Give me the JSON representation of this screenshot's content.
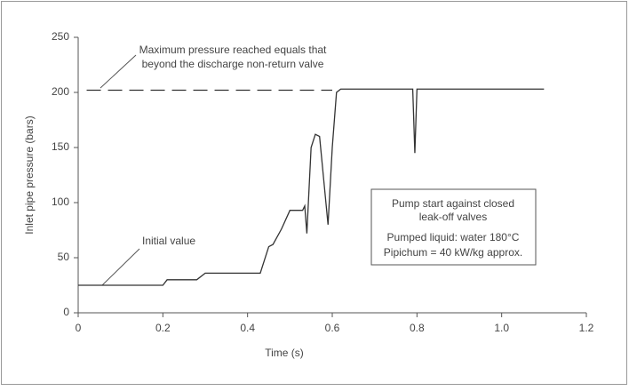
{
  "chart_data": {
    "type": "line",
    "xlabel": "Time (s)",
    "ylabel": "Inlet pipe pressure (bars)",
    "xlim": [
      0,
      1.2
    ],
    "ylim": [
      0,
      250
    ],
    "xticks": [
      0,
      0.2,
      0.4,
      0.6,
      0.8,
      {
        "value": 1,
        "label": "1.0"
      },
      1.2
    ],
    "yticks": [
      0,
      50,
      100,
      150,
      200,
      250
    ],
    "series": [
      {
        "color": "#333333",
        "style": "solid",
        "x": [
          0,
          0.2,
          0.21,
          0.28,
          0.3,
          0.43,
          0.44,
          0.45,
          0.46,
          0.48,
          0.5,
          0.53,
          0.535,
          0.54,
          0.55,
          0.56,
          0.57,
          0.585,
          0.59,
          0.6,
          0.61,
          0.62,
          0.65,
          0.79,
          0.795,
          0.8,
          1.1
        ],
        "values": [
          25,
          25,
          30,
          30,
          36,
          36,
          48,
          60,
          62,
          76,
          93,
          93,
          97,
          72,
          150,
          162,
          160,
          100,
          80,
          150,
          200,
          203,
          203,
          203,
          145,
          203,
          203
        ]
      },
      {
        "color": "#333333",
        "style": "dashed",
        "x": [
          0.02,
          0.6
        ],
        "values": [
          202,
          202
        ]
      }
    ],
    "annotations": [
      {
        "lines": [
          "Maximum pressure reached equals that",
          "beyond the discharge non-return valve"
        ]
      },
      {
        "lines": [
          "Initial value"
        ]
      },
      {
        "lines": [
          "Pump start against closed",
          "leak-off valves",
          "Pumped liquid: water 180°C",
          "Pipichum = 40 kW/kg approx."
        ]
      }
    ]
  }
}
